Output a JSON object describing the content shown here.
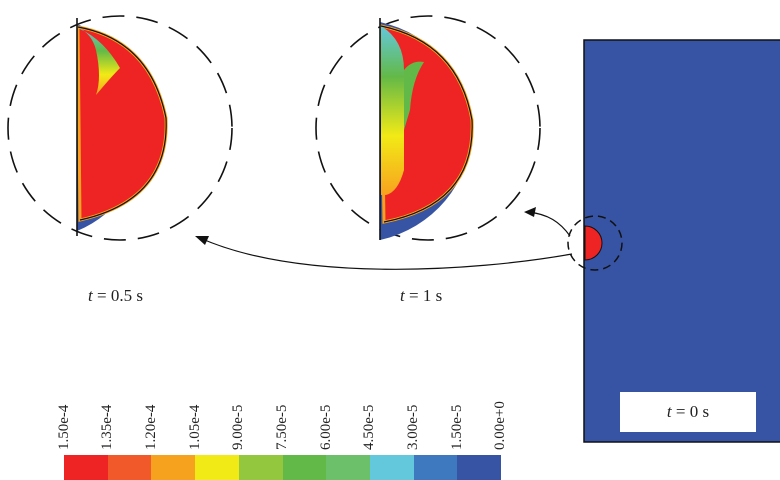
{
  "captions": {
    "t05": {
      "var": "t",
      "rest": " = 0.5 s"
    },
    "t1": {
      "var": "t",
      "rest": " = 1 s"
    },
    "t0": {
      "var": "t",
      "rest": " = 0 s"
    }
  },
  "legend": {
    "labels": [
      "1.50e-4",
      "1.35e-4",
      "1.20e-4",
      "1.05e-4",
      "9.00e-5",
      "7.50e-5",
      "6.00e-5",
      "4.50e-5",
      "3.00e-5",
      "1.50e-5",
      "0.00e+0"
    ],
    "colors": [
      "#ee2424",
      "#f2592a",
      "#f7a21f",
      "#f2ea16",
      "#93c83e",
      "#63b947",
      "#6cc06a",
      "#63c8dc",
      "#3e78bf",
      "#3753a3"
    ]
  },
  "colors": {
    "domain": "#3753a3",
    "bubble": "#ee2424",
    "outline": "#111111"
  }
}
